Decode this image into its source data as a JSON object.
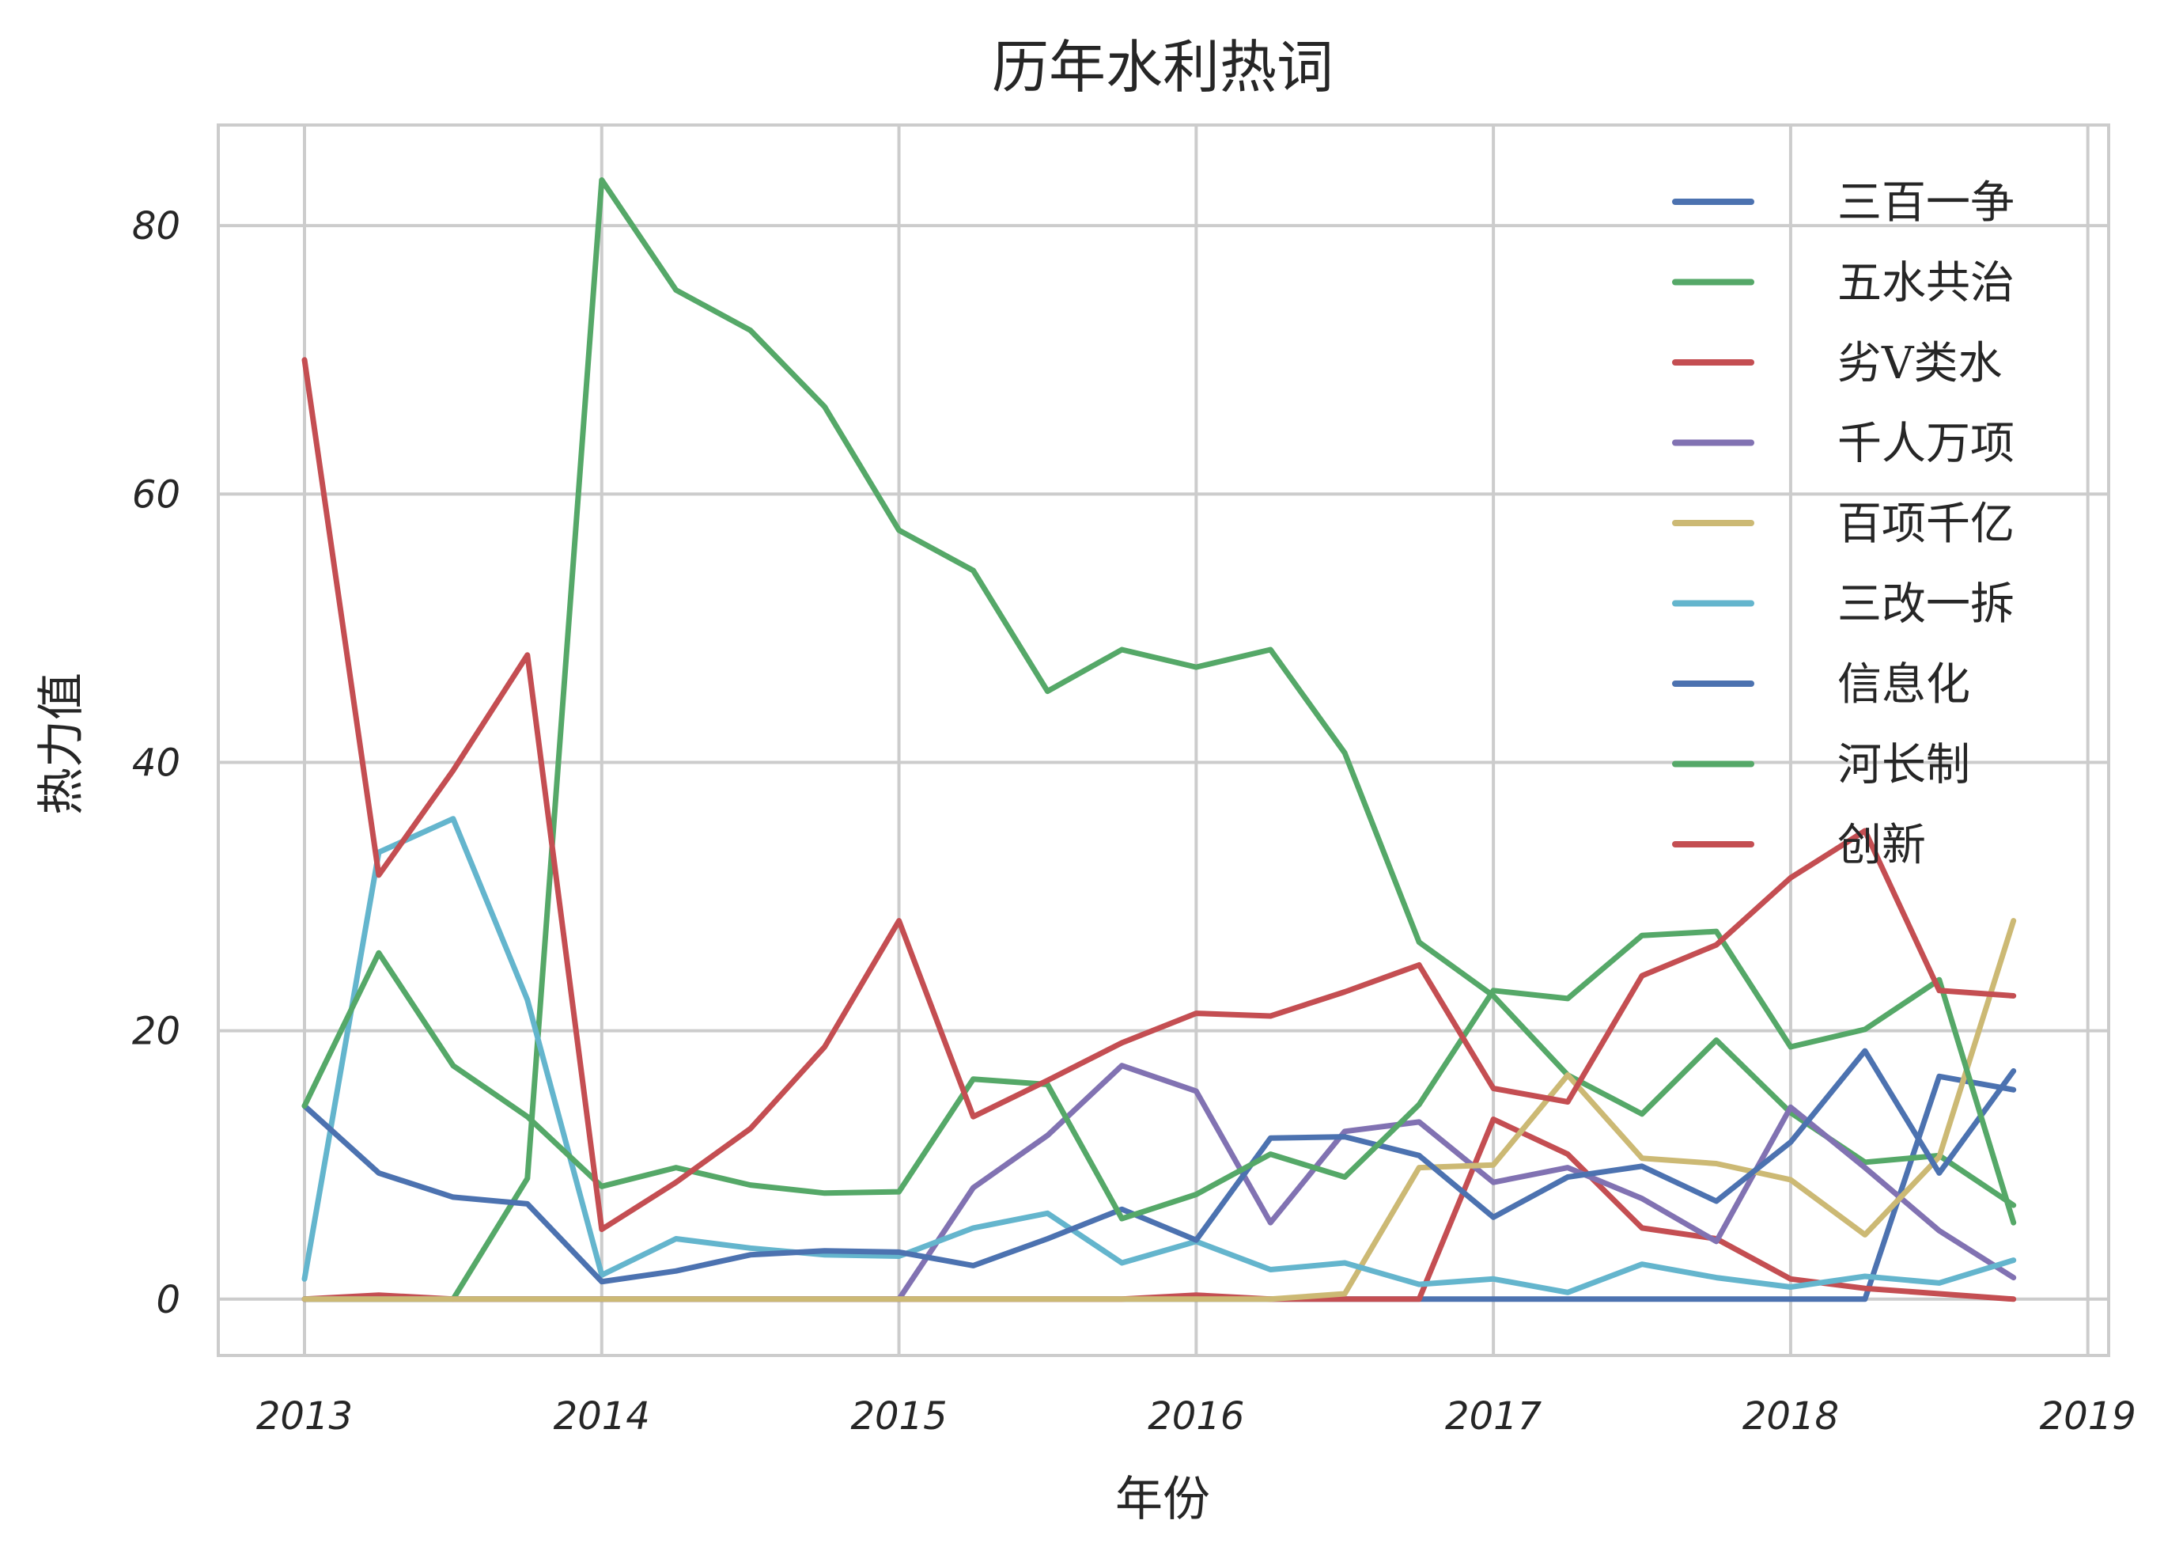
{
  "chart_data": {
    "type": "line",
    "title": "历年水利热词",
    "xlabel": "年份",
    "ylabel": "热力值",
    "xlim": [
      2012.71,
      2019.07
    ],
    "ylim": [
      -4.2,
      87.5
    ],
    "x_ticks": [
      2013,
      2014,
      2015,
      2016,
      2017,
      2018,
      2019
    ],
    "x_tick_labels": [
      "2013",
      "2014",
      "2015",
      "2016",
      "2017",
      "2018",
      "2019"
    ],
    "y_ticks": [
      0,
      20,
      40,
      60,
      80
    ],
    "y_tick_labels": [
      "0",
      "20",
      "40",
      "60",
      "80"
    ],
    "grid": true,
    "legend_position": "top-right",
    "x": [
      2013,
      2013.25,
      2013.5,
      2013.75,
      2014,
      2014.25,
      2014.5,
      2014.75,
      2015,
      2015.25,
      2015.5,
      2015.75,
      2016,
      2016.25,
      2016.5,
      2016.75,
      2017,
      2017.25,
      2017.5,
      2017.75,
      2018,
      2018.25,
      2018.5,
      2018.75
    ],
    "series": [
      {
        "name": "三百一争",
        "color": "#4c72b0",
        "values": [
          0,
          0,
          0,
          0,
          0,
          0,
          0,
          0,
          0,
          0,
          0,
          0,
          0,
          0,
          0,
          0,
          0,
          0,
          0,
          0,
          0,
          0,
          16.6,
          15.6
        ]
      },
      {
        "name": "五水共治",
        "color": "#55a868",
        "values": [
          0,
          0,
          0,
          9.0,
          83.4,
          75.2,
          72.2,
          66.5,
          57.3,
          54.3,
          45.3,
          48.4,
          47.1,
          48.4,
          40.7,
          26.6,
          22.6,
          16.7,
          13.8,
          19.3,
          13.9,
          10.2,
          10.7,
          7.0
        ]
      },
      {
        "name": "劣V类水",
        "color": "#c44e52",
        "values": [
          0,
          0.3,
          0,
          0,
          0,
          0,
          0,
          0,
          0,
          0,
          0,
          0,
          0.3,
          0,
          0,
          0,
          13.4,
          10.8,
          5.3,
          4.5,
          1.5,
          0.8,
          0.4,
          0
        ]
      },
      {
        "name": "千人万项",
        "color": "#8172b2",
        "values": [
          0,
          0,
          0,
          0,
          0,
          0,
          0,
          0,
          0,
          8.3,
          12.2,
          17.4,
          15.5,
          5.7,
          12.5,
          13.2,
          8.7,
          9.8,
          7.5,
          4.3,
          14.3,
          9.8,
          5.1,
          1.6
        ]
      },
      {
        "name": "百项千亿",
        "color": "#ccb974",
        "values": [
          0,
          0,
          0,
          0,
          0,
          0,
          0,
          0,
          0,
          0,
          0,
          0,
          0,
          0,
          0.4,
          9.8,
          10.0,
          16.7,
          10.5,
          10.1,
          8.9,
          4.8,
          10.6,
          28.2
        ]
      },
      {
        "name": "三改一拆",
        "color": "#64b5cd",
        "values": [
          1.5,
          33.3,
          35.8,
          22.3,
          1.8,
          4.5,
          3.8,
          3.3,
          3.2,
          5.3,
          6.4,
          2.7,
          4.3,
          2.2,
          2.7,
          1.1,
          1.5,
          0.5,
          2.6,
          1.6,
          0.9,
          1.7,
          1.2,
          2.9
        ]
      },
      {
        "name": "信息化",
        "color": "#4c72b0",
        "values": [
          14.4,
          9.4,
          7.6,
          7.1,
          1.3,
          2.1,
          3.3,
          3.6,
          3.5,
          2.5,
          4.5,
          6.7,
          4.4,
          12.0,
          12.1,
          10.7,
          6.1,
          9.1,
          9.9,
          7.3,
          11.7,
          18.5,
          9.4,
          17.0
        ]
      },
      {
        "name": "河长制",
        "color": "#55a868",
        "values": [
          14.4,
          25.8,
          17.4,
          13.6,
          8.4,
          9.8,
          8.5,
          7.9,
          8.0,
          16.4,
          16.0,
          6.0,
          7.8,
          10.8,
          9.1,
          14.5,
          23.0,
          22.4,
          27.1,
          27.4,
          18.8,
          20.1,
          23.8,
          5.7
        ]
      },
      {
        "name": "创新",
        "color": "#c44e52",
        "values": [
          70.0,
          31.6,
          39.4,
          48.0,
          5.2,
          8.7,
          12.7,
          18.8,
          28.2,
          13.6,
          16.3,
          19.1,
          21.3,
          21.1,
          22.9,
          24.9,
          15.7,
          14.7,
          24.1,
          26.4,
          31.4,
          34.9,
          23.0,
          22.6
        ]
      }
    ]
  }
}
